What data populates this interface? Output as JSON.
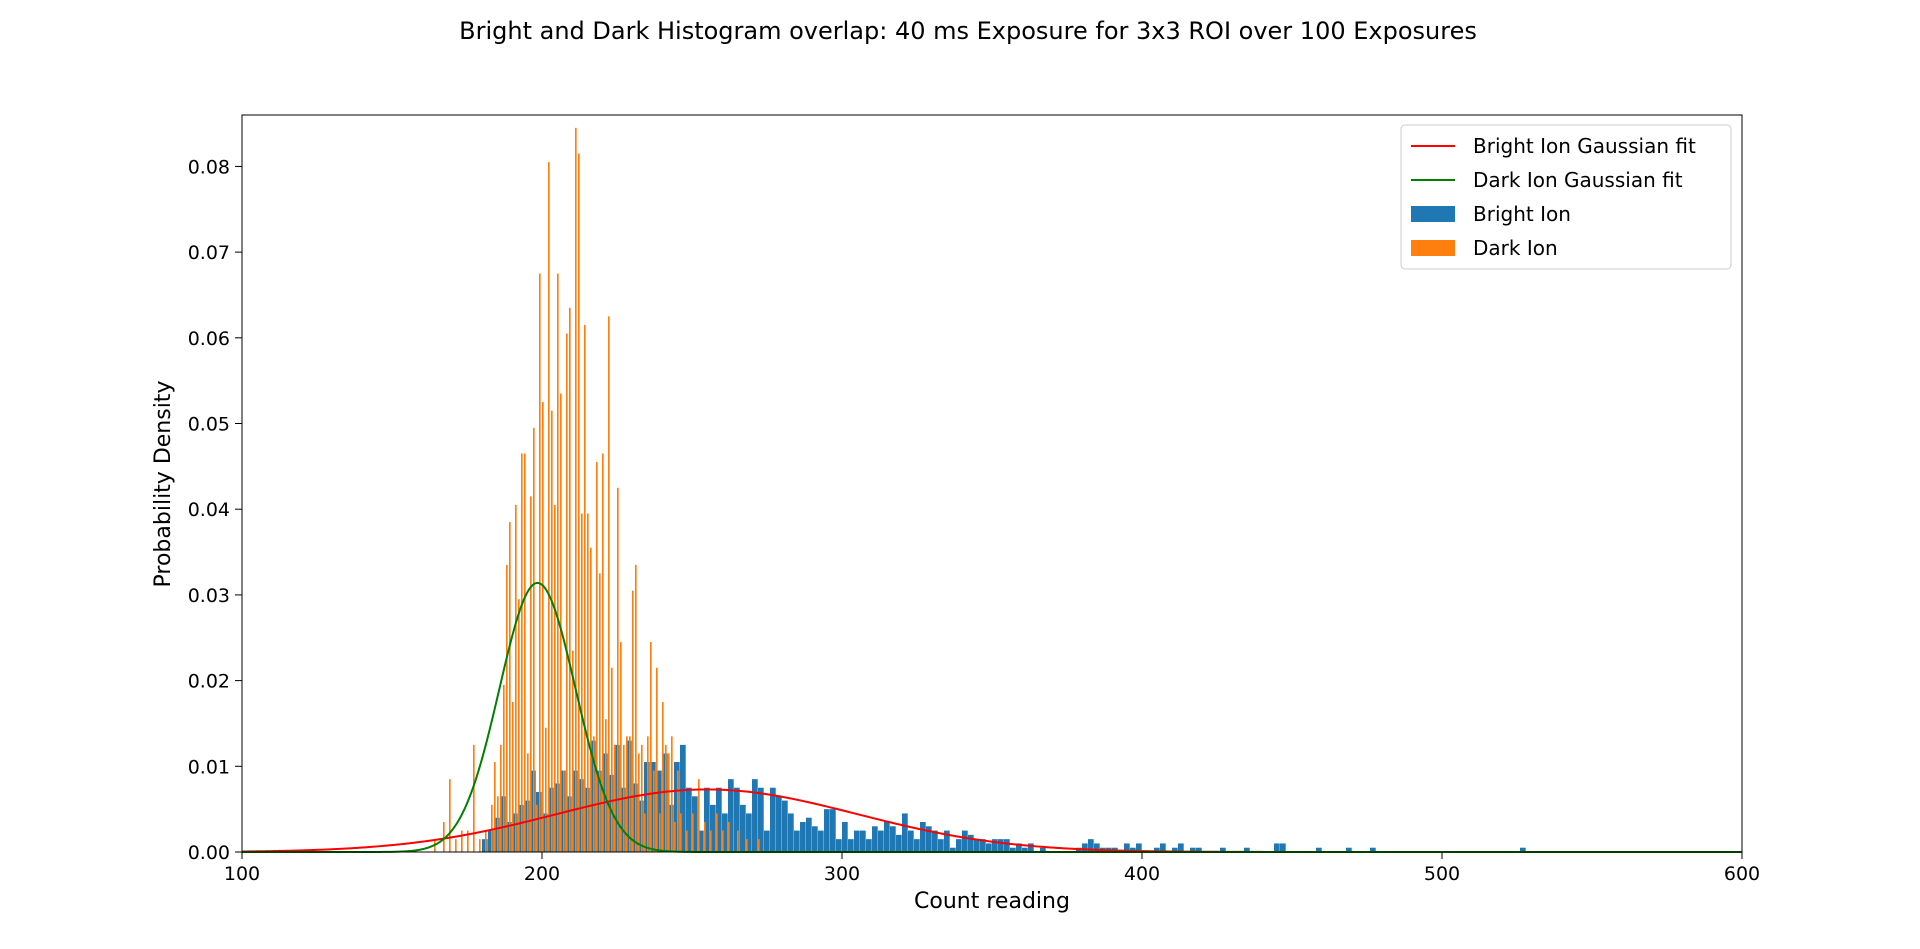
{
  "chart_data": {
    "type": "histogram",
    "title": "Bright and Dark Histogram overlap: 40 ms Exposure for 3x3 ROI over 100 Exposures",
    "xlabel": "Count reading",
    "ylabel": "Probability Density",
    "xlim": [
      100,
      600
    ],
    "ylim": [
      0,
      0.086
    ],
    "xticks": [
      100,
      200,
      300,
      400,
      500,
      600
    ],
    "xtick_labels": [
      "100",
      "200",
      "300",
      "400",
      "500",
      "600"
    ],
    "yticks": [
      0,
      0.01,
      0.02,
      0.03,
      0.04,
      0.05,
      0.06,
      0.07,
      0.08
    ],
    "ytick_labels": [
      "0.00",
      "0.01",
      "0.02",
      "0.03",
      "0.04",
      "0.05",
      "0.06",
      "0.07",
      "0.08"
    ],
    "grid": false,
    "legend_position": "top-right",
    "legend": [
      {
        "label": "Bright Ion Gaussian fit",
        "kind": "line",
        "color": "#ff0000"
      },
      {
        "label": "Dark Ion Gaussian fit",
        "kind": "line",
        "color": "#008000"
      },
      {
        "label": "Bright Ion",
        "kind": "bar",
        "color": "#1f77b4"
      },
      {
        "label": "Dark Ion",
        "kind": "bar",
        "color": "#ff7f0e"
      }
    ],
    "histograms": [
      {
        "name": "Bright Ion",
        "color": "#1f77b4",
        "bins": [
          [
            180,
            0.0015
          ],
          [
            182,
            0.0025
          ],
          [
            184,
            0.004
          ],
          [
            186,
            0.0065
          ],
          [
            188,
            0.0035
          ],
          [
            190,
            0.0045
          ],
          [
            192,
            0.0055
          ],
          [
            194,
            0.006
          ],
          [
            196,
            0.0095
          ],
          [
            198,
            0.007
          ],
          [
            200,
            0.0045
          ],
          [
            202,
            0.0075
          ],
          [
            204,
            0.008
          ],
          [
            206,
            0.0095
          ],
          [
            208,
            0.0065
          ],
          [
            210,
            0.0095
          ],
          [
            212,
            0.0085
          ],
          [
            214,
            0.0075
          ],
          [
            216,
            0.013
          ],
          [
            218,
            0.0095
          ],
          [
            220,
            0.0115
          ],
          [
            222,
            0.009
          ],
          [
            224,
            0.0125
          ],
          [
            226,
            0.0075
          ],
          [
            228,
            0.013
          ],
          [
            230,
            0.008
          ],
          [
            232,
            0.006
          ],
          [
            234,
            0.0105
          ],
          [
            236,
            0.0105
          ],
          [
            238,
            0.0095
          ],
          [
            240,
            0.0115
          ],
          [
            242,
            0.0055
          ],
          [
            244,
            0.0105
          ],
          [
            246,
            0.0125
          ],
          [
            248,
            0.0075
          ],
          [
            250,
            0.0065
          ],
          [
            252,
            0.0025
          ],
          [
            254,
            0.0075
          ],
          [
            256,
            0.0055
          ],
          [
            258,
            0.0075
          ],
          [
            260,
            0.0045
          ],
          [
            262,
            0.0085
          ],
          [
            264,
            0.0075
          ],
          [
            266,
            0.0055
          ],
          [
            268,
            0.0045
          ],
          [
            270,
            0.0085
          ],
          [
            272,
            0.0075
          ],
          [
            274,
            0.0025
          ],
          [
            276,
            0.0075
          ],
          [
            278,
            0.0065
          ],
          [
            280,
            0.006
          ],
          [
            282,
            0.0045
          ],
          [
            284,
            0.0025
          ],
          [
            286,
            0.0035
          ],
          [
            288,
            0.004
          ],
          [
            290,
            0.003
          ],
          [
            292,
            0.0025
          ],
          [
            294,
            0.005
          ],
          [
            296,
            0.005
          ],
          [
            298,
            0.0015
          ],
          [
            300,
            0.0035
          ],
          [
            302,
            0.0015
          ],
          [
            304,
            0.0025
          ],
          [
            306,
            0.0025
          ],
          [
            308,
            0.0015
          ],
          [
            310,
            0.003
          ],
          [
            312,
            0.0025
          ],
          [
            314,
            0.0035
          ],
          [
            316,
            0.003
          ],
          [
            318,
            0.002
          ],
          [
            320,
            0.0045
          ],
          [
            322,
            0.0025
          ],
          [
            324,
            0.0015
          ],
          [
            326,
            0.0035
          ],
          [
            328,
            0.003
          ],
          [
            330,
            0.0025
          ],
          [
            332,
            0.0015
          ],
          [
            334,
            0.0025
          ],
          [
            336,
            0.0005
          ],
          [
            338,
            0.0015
          ],
          [
            340,
            0.0025
          ],
          [
            342,
            0.002
          ],
          [
            344,
            0.0015
          ],
          [
            346,
            0.0015
          ],
          [
            348,
            0.001
          ],
          [
            350,
            0.0015
          ],
          [
            352,
            0.0015
          ],
          [
            354,
            0.0015
          ],
          [
            356,
            0.0005
          ],
          [
            358,
            0.001
          ],
          [
            360,
            0.0005
          ],
          [
            362,
            0.001
          ],
          [
            366,
            0.0005
          ],
          [
            378,
            0.0005
          ],
          [
            380,
            0.001
          ],
          [
            382,
            0.0015
          ],
          [
            384,
            0.001
          ],
          [
            386,
            0.0005
          ],
          [
            388,
            0.0005
          ],
          [
            390,
            0.0005
          ],
          [
            394,
            0.001
          ],
          [
            396,
            0.0005
          ],
          [
            398,
            0.001
          ],
          [
            404,
            0.0005
          ],
          [
            406,
            0.001
          ],
          [
            410,
            0.0005
          ],
          [
            412,
            0.001
          ],
          [
            416,
            0.0005
          ],
          [
            418,
            0.0005
          ],
          [
            426,
            0.0005
          ],
          [
            434,
            0.0005
          ],
          [
            444,
            0.001
          ],
          [
            446,
            0.001
          ],
          [
            458,
            0.0005
          ],
          [
            468,
            0.0005
          ],
          [
            476,
            0.0005
          ],
          [
            526,
            0.0005
          ]
        ]
      },
      {
        "name": "Dark Ion",
        "color": "#ff7f0e",
        "bins": [
          [
            164,
            0.0015
          ],
          [
            167,
            0.0035
          ],
          [
            169,
            0.0085
          ],
          [
            171,
            0.0015
          ],
          [
            173,
            0.0025
          ],
          [
            175,
            0.0025
          ],
          [
            177,
            0.0125
          ],
          [
            179,
            0.0015
          ],
          [
            181,
            0.0025
          ],
          [
            183,
            0.0055
          ],
          [
            184,
            0.0105
          ],
          [
            185,
            0.0065
          ],
          [
            186,
            0.0125
          ],
          [
            187,
            0.0195
          ],
          [
            188,
            0.0335
          ],
          [
            189,
            0.0385
          ],
          [
            190,
            0.0175
          ],
          [
            191,
            0.0405
          ],
          [
            192,
            0.0295
          ],
          [
            193,
            0.0465
          ],
          [
            194,
            0.0465
          ],
          [
            195,
            0.0115
          ],
          [
            196,
            0.0415
          ],
          [
            197,
            0.0495
          ],
          [
            198,
            0.0055
          ],
          [
            199,
            0.0675
          ],
          [
            200,
            0.0525
          ],
          [
            201,
            0.0145
          ],
          [
            202,
            0.0805
          ],
          [
            203,
            0.0515
          ],
          [
            204,
            0.0405
          ],
          [
            205,
            0.0675
          ],
          [
            206,
            0.0535
          ],
          [
            207,
            0.0095
          ],
          [
            208,
            0.0605
          ],
          [
            209,
            0.0635
          ],
          [
            210,
            0.0235
          ],
          [
            211,
            0.0845
          ],
          [
            212,
            0.0815
          ],
          [
            213,
            0.0395
          ],
          [
            214,
            0.0615
          ],
          [
            215,
            0.0395
          ],
          [
            216,
            0.0355
          ],
          [
            217,
            0.0135
          ],
          [
            218,
            0.0455
          ],
          [
            219,
            0.0325
          ],
          [
            220,
            0.0465
          ],
          [
            221,
            0.0155
          ],
          [
            222,
            0.0625
          ],
          [
            223,
            0.0215
          ],
          [
            224,
            0.0125
          ],
          [
            225,
            0.0425
          ],
          [
            226,
            0.0245
          ],
          [
            227,
            0.0125
          ],
          [
            228,
            0.0135
          ],
          [
            229,
            0.0135
          ],
          [
            230,
            0.0305
          ],
          [
            231,
            0.0335
          ],
          [
            232,
            0.0115
          ],
          [
            233,
            0.0125
          ],
          [
            234,
            0.0045
          ],
          [
            235,
            0.0135
          ],
          [
            236,
            0.0245
          ],
          [
            237,
            0.0095
          ],
          [
            238,
            0.0215
          ],
          [
            239,
            0.0045
          ],
          [
            240,
            0.0175
          ],
          [
            241,
            0.0125
          ],
          [
            242,
            0.0115
          ],
          [
            243,
            0.0135
          ],
          [
            244,
            0.0035
          ],
          [
            245,
            0.0095
          ],
          [
            246,
            0.0045
          ],
          [
            248,
            0.0025
          ],
          [
            250,
            0.0045
          ],
          [
            252,
            0.0085
          ],
          [
            254,
            0.0035
          ],
          [
            256,
            0.0025
          ],
          [
            258,
            0.0045
          ],
          [
            260,
            0.0025
          ],
          [
            262,
            0.0035
          ],
          [
            265,
            0.0025
          ],
          [
            268,
            0.0015
          ],
          [
            272,
            0.0015
          ]
        ]
      }
    ],
    "fits": [
      {
        "name": "Bright Ion Gaussian fit",
        "color": "#ff0000",
        "kind": "gaussian",
        "mean": 255,
        "sigma": 50,
        "peak": 0.0073
      },
      {
        "name": "Dark Ion Gaussian fit",
        "color": "#008000",
        "kind": "gaussian",
        "mean": 198.5,
        "sigma": 12.7,
        "peak": 0.0314
      }
    ]
  }
}
